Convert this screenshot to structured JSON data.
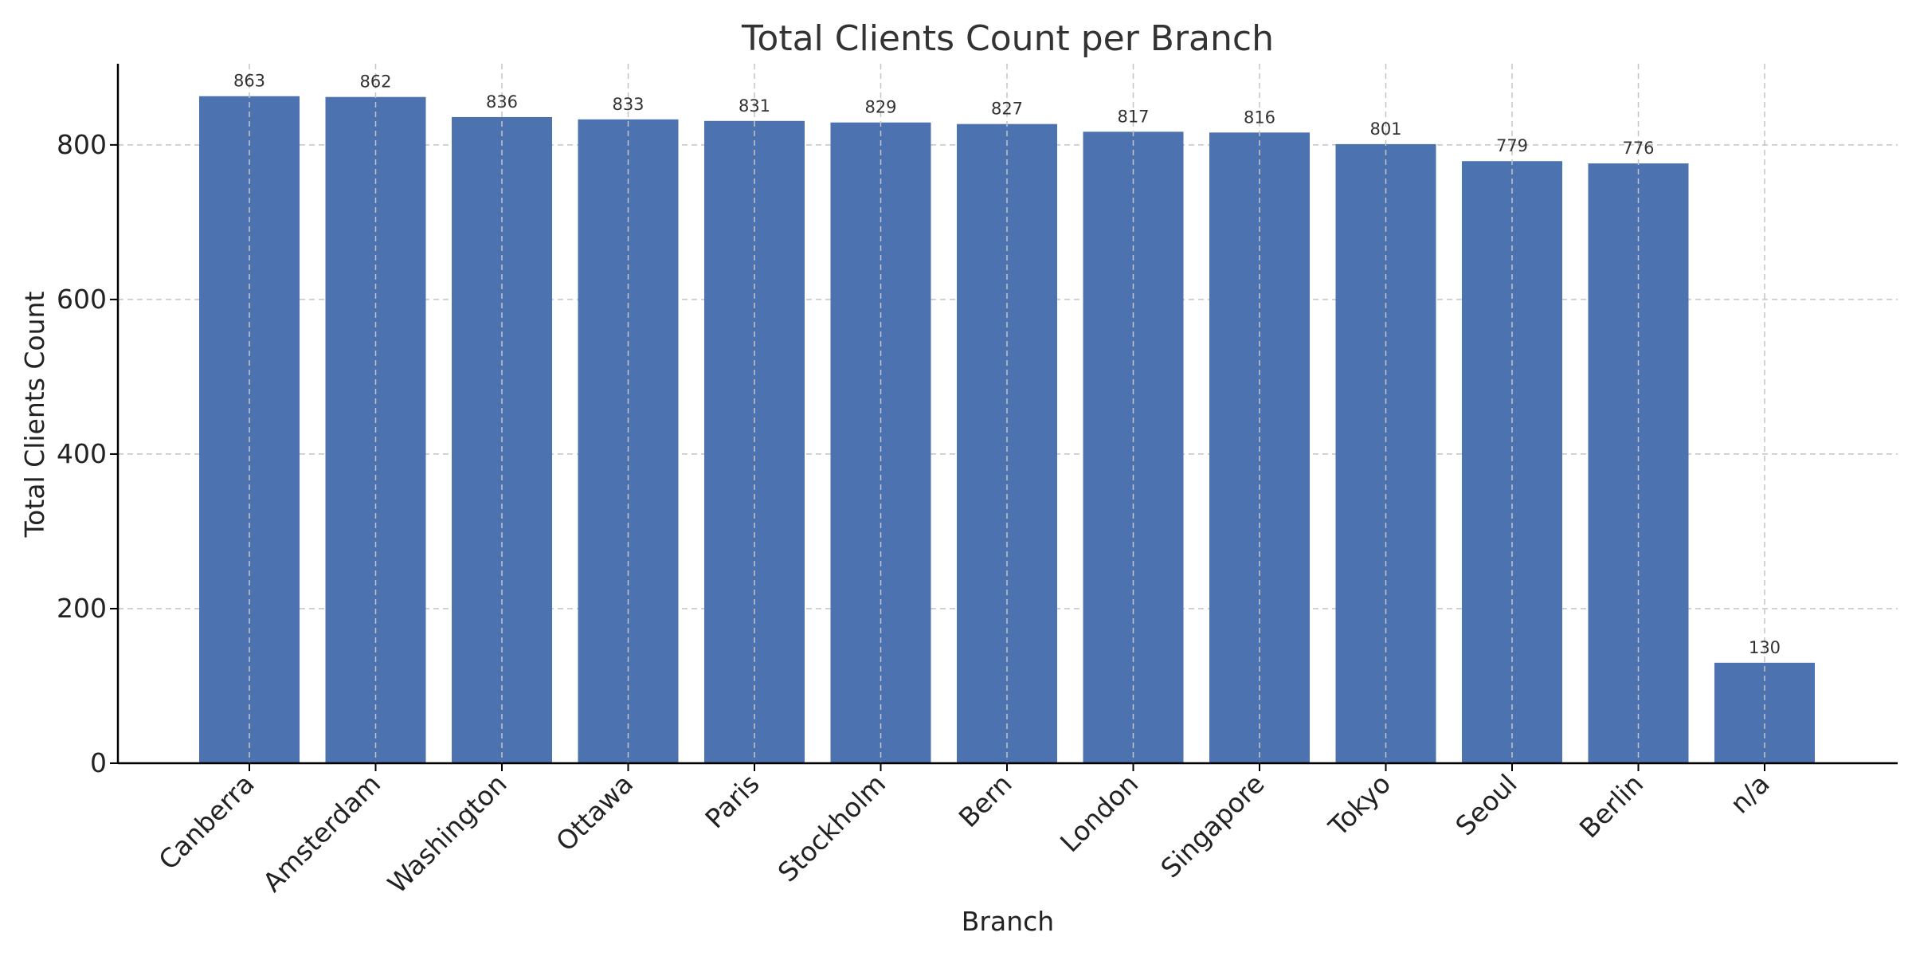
{
  "chart_data": {
    "type": "bar",
    "title": "Total Clients Count per Branch",
    "xlabel": "Branch",
    "ylabel": "Total Clients Count",
    "categories": [
      "Canberra",
      "Amsterdam",
      "Washington",
      "Ottawa",
      "Paris",
      "Stockholm",
      "Bern",
      "London",
      "Singapore",
      "Tokyo",
      "Seoul",
      "Berlin",
      "n/a"
    ],
    "values": [
      863,
      862,
      836,
      833,
      831,
      829,
      827,
      817,
      816,
      801,
      779,
      776,
      130
    ],
    "ylim": [
      0,
      905
    ],
    "yticks": [
      0,
      200,
      400,
      600,
      800
    ],
    "grid": true,
    "bar_color": "#4c72b0"
  }
}
